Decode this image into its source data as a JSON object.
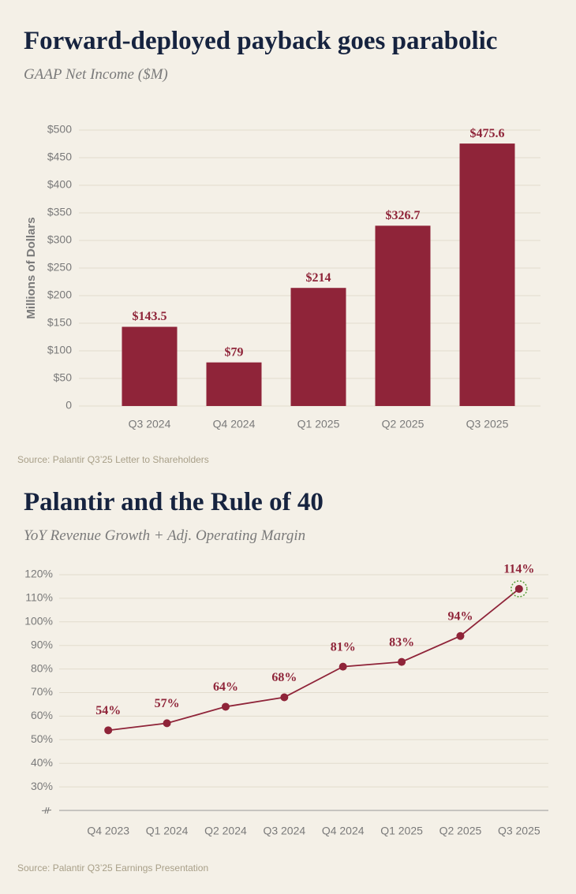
{
  "chart_data": [
    {
      "type": "bar",
      "title": "Forward-deployed payback goes parabolic",
      "subtitle": "GAAP Net Income ($M)",
      "y_label": "Millions of Dollars",
      "categories": [
        "Q3 2024",
        "Q4 2024",
        "Q1 2025",
        "Q2 2025",
        "Q3 2025"
      ],
      "values": [
        143.5,
        79,
        214,
        326.7,
        475.6
      ],
      "value_labels": [
        "$143.5",
        "$79",
        "$214",
        "$326.7",
        "$475.6"
      ],
      "color": "#8f2439",
      "ylim": [
        0,
        500
      ],
      "yticks": [
        0,
        {
          "value": 50,
          "label": "$50"
        },
        {
          "value": 100,
          "label": "$100"
        },
        {
          "value": 150,
          "label": "$150"
        },
        {
          "value": 200,
          "label": "$200"
        },
        {
          "value": 250,
          "label": "$250"
        },
        {
          "value": 300,
          "label": "$300"
        },
        {
          "value": 350,
          "label": "$350"
        },
        {
          "value": 400,
          "label": "$400"
        },
        {
          "value": 450,
          "label": "$450"
        },
        {
          "value": 500,
          "label": "$500"
        }
      ],
      "grid": true,
      "source": "Source: Palantir Q3’25 Letter to Shareholders"
    },
    {
      "type": "line",
      "title": "Palantir and the Rule of 40",
      "subtitle": "YoY Revenue Growth + Adj. Operating Margin",
      "categories": [
        "Q4 2023",
        "Q1 2024",
        "Q2 2024",
        "Q3 2024",
        "Q4 2024",
        "Q1 2025",
        "Q2 2025",
        "Q3 2025"
      ],
      "values": [
        54,
        57,
        64,
        68,
        81,
        83,
        94,
        114
      ],
      "value_labels": [
        "54%",
        "57%",
        "64%",
        "68%",
        "81%",
        "83%",
        "94%",
        "114%"
      ],
      "color": "#8f2439",
      "ylim": [
        20,
        120
      ],
      "yticks": [
        {
          "value": 30,
          "label": "30%"
        },
        {
          "value": 40,
          "label": "40%"
        },
        {
          "value": 50,
          "label": "50%"
        },
        {
          "value": 60,
          "label": "60%"
        },
        {
          "value": 70,
          "label": "70%"
        },
        {
          "value": 80,
          "label": "80%"
        },
        {
          "value": 90,
          "label": "90%"
        },
        {
          "value": 100,
          "label": "100%"
        },
        {
          "value": 110,
          "label": "110%"
        },
        {
          "value": 120,
          "label": "120%"
        }
      ],
      "grid": true,
      "axis_break": true,
      "highlight": {
        "index": 7,
        "color": "#5a9e3a"
      },
      "source": "Source: Palantir Q3’25 Earnings Presentation"
    }
  ]
}
